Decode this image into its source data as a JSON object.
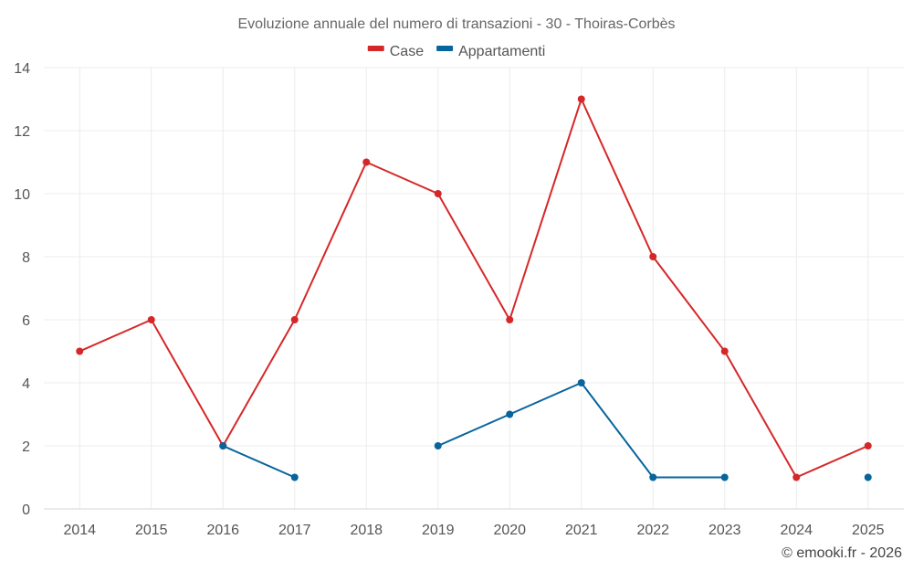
{
  "chart_data": {
    "type": "line",
    "title": "Evoluzione annuale del numero di transazioni - 30 - Thoiras-Corbès",
    "x": [
      "2014",
      "2015",
      "2016",
      "2017",
      "2018",
      "2019",
      "2020",
      "2021",
      "2022",
      "2023",
      "2024",
      "2025"
    ],
    "ylim": [
      0,
      14
    ],
    "yticks": [
      0,
      2,
      4,
      6,
      8,
      10,
      12,
      14
    ],
    "grid": true,
    "legend_position": "top-center",
    "series": [
      {
        "name": "Case",
        "color": "#d62728",
        "values": [
          5,
          6,
          2,
          6,
          11,
          10,
          6,
          13,
          8,
          5,
          1,
          2
        ]
      },
      {
        "name": "Appartamenti",
        "color": "#08649c",
        "values": [
          null,
          null,
          2,
          1,
          null,
          2,
          3,
          4,
          1,
          1,
          null,
          1
        ]
      }
    ]
  },
  "credit": "© emooki.fr - 2026"
}
